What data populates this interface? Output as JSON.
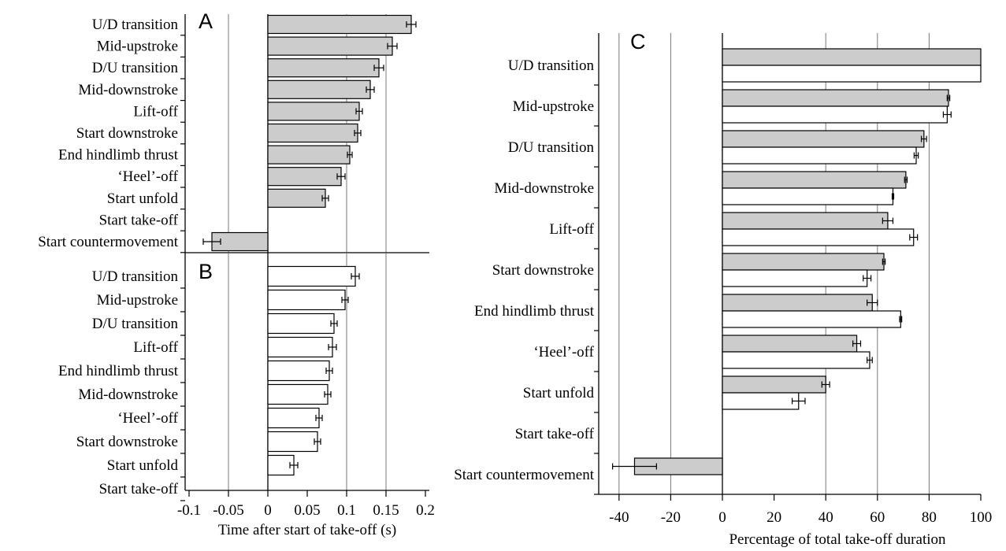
{
  "colors": {
    "grey_bar": "#cccccc",
    "white_bar": "#ffffff",
    "axis": "#000000",
    "grid": "#777777"
  },
  "chart_data": [
    {
      "type": "bar",
      "orientation": "horizontal",
      "panel": "A",
      "title": "",
      "fill": "grey",
      "categories": [
        "U/D transition",
        "Mid-upstroke",
        "D/U transition",
        "Mid-downstroke",
        "Lift-off",
        "Start downstroke",
        "End hindlimb thrust",
        "‘Heel’-off",
        "Start unfold",
        "Start take-off",
        "Start countermovement"
      ],
      "values": [
        0.182,
        0.158,
        0.141,
        0.13,
        0.116,
        0.114,
        0.104,
        0.093,
        0.073,
        0,
        -0.071
      ],
      "errors": [
        0.006,
        0.006,
        0.006,
        0.005,
        0.004,
        0.004,
        0.003,
        0.005,
        0.004,
        0,
        0.011
      ],
      "xlim": [
        -0.1,
        0.2
      ],
      "xticks": [
        "-0.1",
        "-0.05",
        "0",
        "0.05",
        "0.1",
        "0.15",
        "0.2"
      ],
      "xlabel": "",
      "grid": "vertical"
    },
    {
      "type": "bar",
      "orientation": "horizontal",
      "panel": "B",
      "title": "",
      "fill": "white",
      "categories": [
        "U/D transition",
        "Mid-upstroke",
        "D/U transition",
        "Lift-off",
        "End hindlimb thrust",
        "Mid-downstroke",
        "‘Heel’-off",
        "Start downstroke",
        "Start unfold",
        "Start take-off"
      ],
      "values": [
        0.111,
        0.098,
        0.084,
        0.082,
        0.078,
        0.076,
        0.065,
        0.063,
        0.033,
        0
      ],
      "errors": [
        0.005,
        0.004,
        0.004,
        0.005,
        0.004,
        0.004,
        0.004,
        0.004,
        0.005,
        0
      ],
      "xlim": [
        -0.1,
        0.2
      ],
      "xticks": [
        "-0.1",
        "-0.05",
        "0",
        "0.05",
        "0.1",
        "0.15",
        "0.2"
      ],
      "xlabel": "Time after start of take-off (s)",
      "grid": "vertical"
    },
    {
      "type": "bar",
      "orientation": "horizontal",
      "panel": "C",
      "title": "",
      "categories": [
        "U/D transition",
        "Mid-upstroke",
        "D/U transition",
        "Mid-downstroke",
        "Lift-off",
        "Start downstroke",
        "End hindlimb thrust",
        "‘Heel’-off",
        "Start unfold",
        "Start take-off",
        "Start countermovement"
      ],
      "series": [
        {
          "fill": "grey",
          "values": [
            100,
            87.5,
            78,
            71,
            64,
            62.5,
            58,
            52,
            40,
            null,
            -34
          ],
          "errors": [
            0,
            0.5,
            1,
            0.5,
            2,
            0.5,
            2,
            1.5,
            1.5,
            null,
            8.5
          ]
        },
        {
          "fill": "white",
          "values": [
            100,
            87,
            75,
            66,
            74,
            56,
            69,
            57,
            29.5,
            null,
            null
          ],
          "errors": [
            0,
            1.5,
            0.8,
            0.3,
            1.5,
            1.5,
            0.4,
            1,
            2.5,
            null,
            null
          ]
        }
      ],
      "xlim": [
        -45,
        100
      ],
      "xticks": [
        "-40",
        "-20",
        "0",
        "20",
        "40",
        "60",
        "80",
        "100"
      ],
      "xlabel": "Percentage of total take-off duration",
      "grid": "vertical"
    }
  ]
}
